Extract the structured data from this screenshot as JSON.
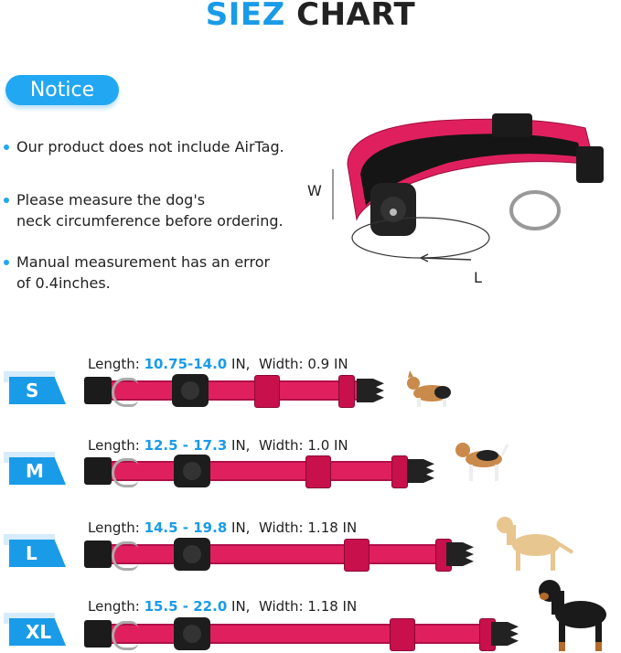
{
  "title": {
    "accent": "SIEZ",
    "rest": "CHART"
  },
  "notice": {
    "label": "Notice"
  },
  "bullets": [
    {
      "line1": "Our product does not include AirTag.",
      "line2": ""
    },
    {
      "line1": "Please measure the dog's",
      "line2": "neck circumference before ordering."
    },
    {
      "line1": "Manual measurement has an error",
      "line2": "of 0.4inches."
    }
  ],
  "diagram": {
    "width_label": "W",
    "length_label": "L"
  },
  "sizes": [
    {
      "size": "S",
      "length_prefix": "Length: ",
      "length": "10.75-14.0",
      "length_unit": " IN,  Width: 0.9 IN"
    },
    {
      "size": "M",
      "length_prefix": "Length: ",
      "length": "12.5 - 17.3",
      "length_unit": " IN,  Width: 1.0 IN"
    },
    {
      "size": "L",
      "length_prefix": "Length: ",
      "length": "14.5 - 19.8",
      "length_unit": " IN,  Width: 1.18 IN"
    },
    {
      "size": "XL",
      "length_prefix": "Length: ",
      "length": "15.5 - 22.0",
      "length_unit": " IN,  Width: 1.18 IN"
    }
  ],
  "colors": {
    "accent": "#1a9be8",
    "collar": "#e0205e"
  }
}
